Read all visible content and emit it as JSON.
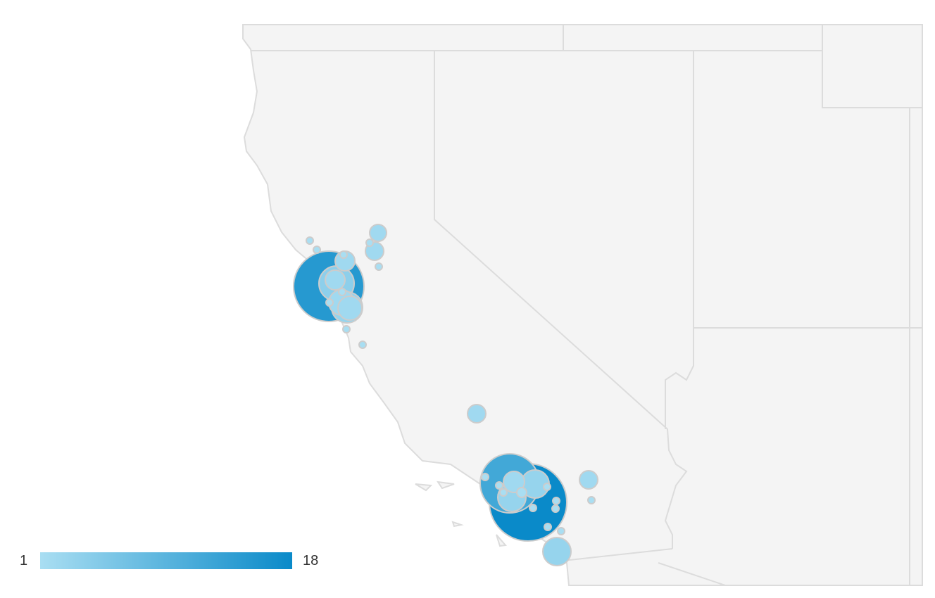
{
  "legend": {
    "min_label": "1",
    "max_label": "18",
    "min_color": "#a9def2",
    "max_color": "#0a8ac9"
  },
  "colors": {
    "land": "#f4f4f4",
    "border": "#dcdcdc",
    "bubble_stroke": "#cccccc"
  },
  "bubbles": {
    "values": [
      15,
      4,
      2,
      2,
      3,
      2,
      2,
      2,
      2,
      1,
      1,
      1,
      1,
      1,
      1,
      1,
      1,
      1,
      2,
      18,
      12,
      2,
      3,
      3,
      1,
      1,
      1,
      1,
      1,
      1,
      1,
      1,
      1,
      1,
      2,
      1,
      3
    ]
  }
}
